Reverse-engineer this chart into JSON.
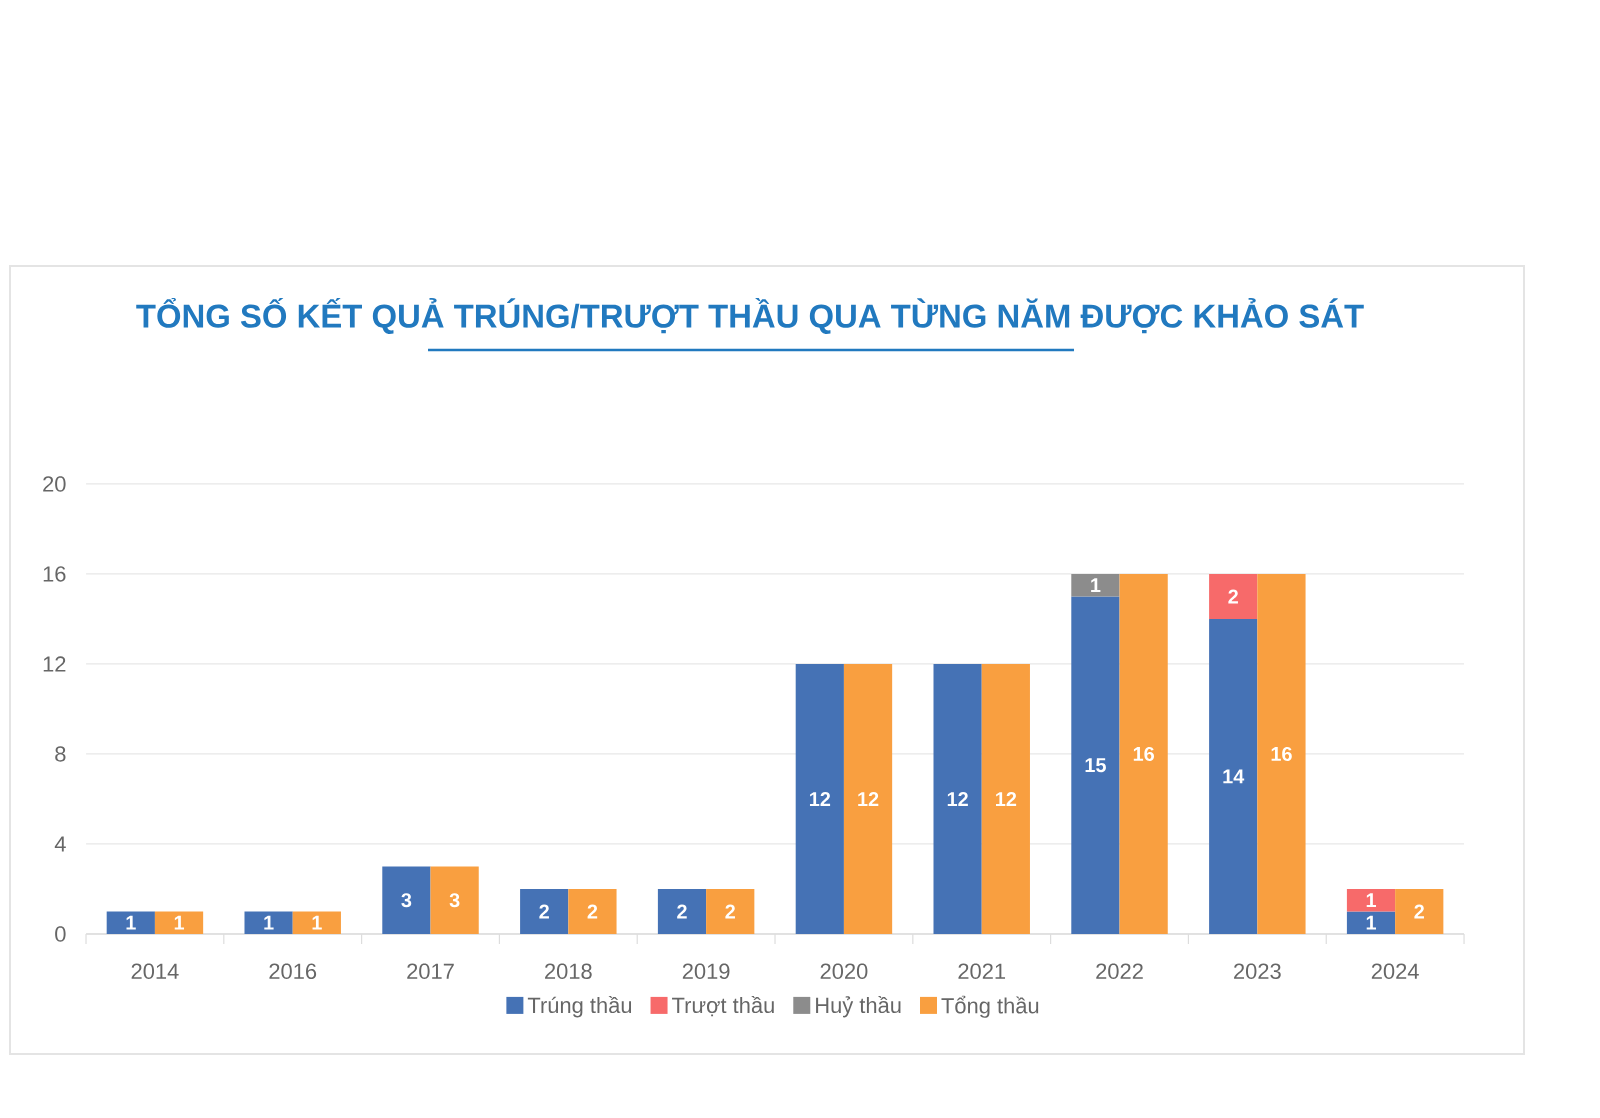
{
  "chart_data": {
    "type": "bar",
    "title": "TỔNG SỐ KẾT QUẢ TRÚNG/TRƯỢT THẦU QUA TỪNG NĂM ĐƯỢC KHẢO SÁT",
    "categories": [
      "2014",
      "2016",
      "2017",
      "2018",
      "2019",
      "2020",
      "2021",
      "2022",
      "2023",
      "2024"
    ],
    "series": [
      {
        "name": "Trúng thầu",
        "color": "#4572b5",
        "values": [
          1,
          1,
          3,
          2,
          2,
          12,
          12,
          15,
          14,
          1
        ]
      },
      {
        "name": "Trượt thầu",
        "color": "#f76a6a",
        "values": [
          null,
          null,
          null,
          null,
          null,
          null,
          null,
          null,
          2,
          1
        ],
        "base": [
          null,
          null,
          null,
          null,
          null,
          null,
          null,
          null,
          14,
          1
        ]
      },
      {
        "name": "Huỷ thầu",
        "color": "#8c8c8c",
        "values": [
          null,
          null,
          null,
          null,
          null,
          null,
          null,
          1,
          null,
          null
        ],
        "base": [
          null,
          null,
          null,
          null,
          null,
          null,
          null,
          15,
          null,
          null
        ]
      },
      {
        "name": "Tổng thầu",
        "color": "#f99f40",
        "values": [
          1,
          1,
          3,
          2,
          2,
          12,
          12,
          16,
          16,
          2
        ]
      }
    ],
    "ylim": [
      0,
      20
    ],
    "yticks": [
      0,
      4,
      8,
      12,
      16,
      20
    ],
    "grid": "y",
    "legend": "bottom",
    "data_labels": true
  }
}
